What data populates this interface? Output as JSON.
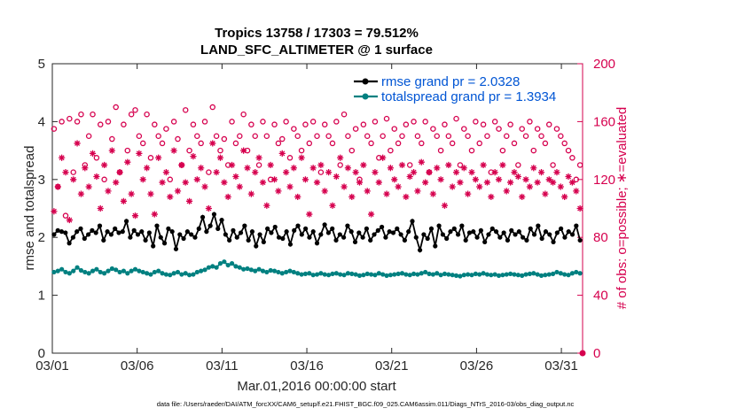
{
  "chart_data": {
    "type": "line",
    "title_line1": "Tropics 13758 / 17303 = 79.512%",
    "title_line2": "LAND_SFC_ALTIMETER @ 1 surface",
    "xlabel": "Mar.01,2016 00:00:00 start",
    "ylabel_left": "rmse and totalspread",
    "ylabel_right": "# of obs: o=possible; ∗=evaluated",
    "footnote": "data file: /Users/raeder/DAI/ATM_forcXX/CAM6_setup/f.e21.FHIST_BGC.f09_025.CAM6assim.011/Diags_NTrS_2016-03/obs_diag_output.nc",
    "xlim": [
      0,
      31.25
    ],
    "ylim_left": [
      0,
      5
    ],
    "ylim_right": [
      0,
      200
    ],
    "x_ticks": [
      0,
      5,
      10,
      15,
      20,
      25,
      30
    ],
    "x_tick_labels": [
      "03/01",
      "03/06",
      "03/11",
      "03/16",
      "03/21",
      "03/26",
      "03/31"
    ],
    "y_left_ticks": [
      "0",
      "1",
      "2",
      "3",
      "4",
      "5"
    ],
    "y_right_ticks": [
      "0",
      "40",
      "80",
      "120",
      "160",
      "200"
    ],
    "colors": {
      "rmse": "#000000",
      "spread": "#008080",
      "obs": "#d6004e",
      "legend_text": "#0055d4"
    },
    "series": [
      {
        "name": "rmse grand pr = 2.0328",
        "axis": "left",
        "values": [
          2.05,
          2.12,
          2.1,
          2.08,
          1.9,
          2.0,
          2.1,
          2.15,
          1.98,
          2.05,
          2.12,
          2.08,
          2.2,
          1.95,
          2.1,
          2.05,
          2.15,
          2.08,
          2.1,
          2.28,
          2.0,
          2.12,
          2.05,
          2.1,
          1.95,
          2.08,
          1.85,
          2.2,
          2.0,
          1.9,
          2.15,
          2.1,
          1.8,
          2.05,
          1.98,
          2.1,
          2.05,
          2.0,
          2.15,
          2.35,
          2.1,
          2.2,
          2.4,
          2.15,
          2.3,
          2.05,
          1.95,
          2.12,
          2.0,
          2.08,
          2.2,
          1.95,
          2.1,
          1.85,
          2.05,
          1.92,
          2.15,
          2.08,
          2.18,
          2.0,
          1.98,
          2.1,
          1.88,
          2.12,
          2.2,
          2.05,
          2.15,
          2.0,
          2.1,
          1.9,
          2.05,
          2.22,
          2.08,
          2.15,
          1.95,
          2.05,
          2.0,
          2.2,
          2.1,
          1.92,
          2.08,
          2.0,
          2.15,
          1.95,
          2.05,
          2.12,
          2.18,
          2.0,
          2.1,
          2.08,
          2.15,
          2.05,
          1.95,
          2.1,
          2.28,
          2.0,
          1.78,
          2.05,
          1.98,
          2.15,
          1.85,
          2.2,
          2.05,
          1.98,
          2.1,
          2.15,
          2.05,
          2.2,
          1.95,
          2.08,
          2.1,
          2.0,
          2.12,
          1.92,
          2.05,
          2.15,
          2.1,
          2.0,
          2.08,
          1.95,
          2.12,
          2.05,
          2.1,
          2.0,
          1.95,
          2.15,
          2.05,
          2.2,
          1.98,
          2.1,
          2.05,
          1.92,
          2.08,
          2.15,
          2.0,
          2.1,
          2.05,
          2.2,
          1.95
        ]
      },
      {
        "name": "totalspread grand pr = 1.3934",
        "axis": "left",
        "values": [
          1.4,
          1.42,
          1.45,
          1.4,
          1.38,
          1.42,
          1.48,
          1.43,
          1.4,
          1.38,
          1.42,
          1.45,
          1.4,
          1.38,
          1.42,
          1.46,
          1.44,
          1.4,
          1.42,
          1.38,
          1.42,
          1.45,
          1.42,
          1.4,
          1.38,
          1.36,
          1.4,
          1.42,
          1.38,
          1.36,
          1.35,
          1.38,
          1.4,
          1.36,
          1.38,
          1.35,
          1.36,
          1.4,
          1.42,
          1.44,
          1.48,
          1.5,
          1.48,
          1.55,
          1.58,
          1.52,
          1.55,
          1.5,
          1.48,
          1.45,
          1.46,
          1.44,
          1.42,
          1.45,
          1.42,
          1.4,
          1.43,
          1.42,
          1.4,
          1.38,
          1.4,
          1.42,
          1.4,
          1.38,
          1.36,
          1.37,
          1.38,
          1.35,
          1.36,
          1.38,
          1.36,
          1.35,
          1.37,
          1.38,
          1.36,
          1.35,
          1.38,
          1.37,
          1.36,
          1.34,
          1.35,
          1.37,
          1.36,
          1.35,
          1.38,
          1.36,
          1.34,
          1.35,
          1.36,
          1.37,
          1.38,
          1.36,
          1.35,
          1.37,
          1.36,
          1.38,
          1.4,
          1.37,
          1.36,
          1.38,
          1.35,
          1.37,
          1.36,
          1.35,
          1.34,
          1.33,
          1.35,
          1.36,
          1.35,
          1.37,
          1.36,
          1.38,
          1.36,
          1.35,
          1.36,
          1.34,
          1.35,
          1.36,
          1.37,
          1.36,
          1.35,
          1.34,
          1.36,
          1.37,
          1.38,
          1.36,
          1.34,
          1.35,
          1.36,
          1.37,
          1.4,
          1.38,
          1.36,
          1.35,
          1.38,
          1.4,
          1.38
        ]
      },
      {
        "name": "# of obs possible",
        "axis": "right",
        "marker": "o",
        "values": [
          155,
          115,
          160,
          95,
          162,
          125,
          160,
          165,
          130,
          150,
          165,
          135,
          158,
          120,
          160,
          148,
          170,
          125,
          158,
          140,
          165,
          168,
          150,
          145,
          165,
          135,
          158,
          150,
          145,
          155,
          120,
          160,
          148,
          130,
          168,
          140,
          158,
          150,
          145,
          160,
          125,
          170,
          150,
          140,
          148,
          130,
          160,
          145,
          150,
          165,
          140,
          158,
          150,
          130,
          160,
          150,
          120,
          158,
          145,
          148,
          160,
          135,
          155,
          150,
          140,
          158,
          145,
          160,
          150,
          125,
          158,
          150,
          145,
          160,
          130,
          165,
          150,
          140,
          155,
          120,
          158,
          150,
          145,
          160,
          135,
          150,
          162,
          140,
          155,
          145,
          150,
          158,
          130,
          160,
          150,
          145,
          160,
          125,
          155,
          150,
          140,
          158,
          150,
          145,
          162,
          130,
          155,
          150,
          140,
          160,
          145,
          158,
          150,
          125,
          160,
          155,
          140,
          150,
          158,
          145,
          130,
          155,
          150,
          160,
          140,
          155,
          150,
          145,
          158,
          130,
          155,
          150,
          145,
          140,
          135,
          120,
          130
        ]
      },
      {
        "name": "# of obs evaluated",
        "axis": "right",
        "marker": "*",
        "values": [
          98,
          115,
          135,
          125,
          92,
          120,
          145,
          110,
          128,
          115,
          138,
          122,
          100,
          130,
          112,
          140,
          118,
          125,
          105,
          132,
          110,
          95,
          138,
          120,
          128,
          110,
          96,
          135,
          118,
          125,
          108,
          140,
          112,
          130,
          118,
          105,
          136,
          120,
          128,
          115,
          100,
          145,
          125,
          135,
          118,
          108,
          130,
          122,
          115,
          140,
          128,
          110,
          125,
          135,
          118,
          102,
          130,
          120,
          112,
          138,
          125,
          115,
          128,
          108,
          135,
          120,
          96,
          128,
          118,
          130,
          112,
          125,
          102,
          122,
          135,
          115,
          128,
          108,
          125,
          118,
          130,
          112,
          96,
          125,
          118,
          135,
          110,
          128,
          120,
          115,
          130,
          108,
          122,
          125,
          112,
          132,
          118,
          125,
          110,
          128,
          120,
          102,
          130,
          115,
          125,
          118,
          128,
          110,
          125,
          120,
          115,
          130,
          118,
          108,
          125,
          120,
          130,
          112,
          118,
          125,
          122,
          108,
          120,
          115,
          128,
          118,
          125,
          110,
          120,
          118,
          125,
          115,
          108,
          122,
          118,
          112,
          100
        ]
      }
    ]
  }
}
